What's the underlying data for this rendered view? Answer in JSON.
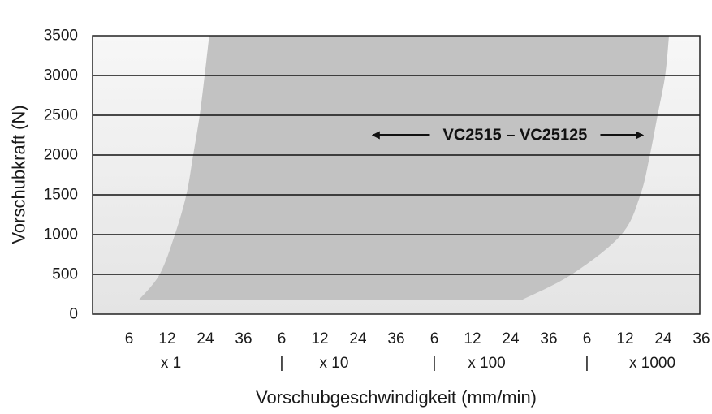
{
  "chart_data": {
    "type": "area",
    "title": "",
    "xlabel": "Vorschubgeschwindigkeit (mm/min)",
    "ylabel": "Vorschubkraft (N)",
    "ylim": [
      0,
      3500
    ],
    "yticks": [
      0,
      500,
      1000,
      1500,
      2000,
      2500,
      3000,
      3500
    ],
    "grid": "horizontal",
    "x_tick_labels": [
      "6",
      "12",
      "24",
      "36",
      "6",
      "12",
      "24",
      "36",
      "6",
      "12",
      "24",
      "36",
      "6",
      "12",
      "24",
      "36"
    ],
    "x_multipliers": [
      "x 1",
      "x 10",
      "x 100",
      "x 1000"
    ],
    "x_separators": [
      "|",
      "|",
      "|"
    ],
    "region": {
      "name": "VC2515 – VC25125",
      "upper_left_edge": [
        {
          "x": 0.26,
          "y": 180
        },
        {
          "x": 0.8,
          "y": 500
        },
        {
          "x": 1.2,
          "y": 1000
        },
        {
          "x": 1.5,
          "y": 1500
        },
        {
          "x": 1.68,
          "y": 2000
        },
        {
          "x": 1.85,
          "y": 2500
        },
        {
          "x": 1.98,
          "y": 3000
        },
        {
          "x": 2.1,
          "y": 3500
        }
      ],
      "lower_right_edge": [
        {
          "x": 10.3,
          "y": 180
        },
        {
          "x": 11.6,
          "y": 500
        },
        {
          "x": 12.9,
          "y": 1000
        },
        {
          "x": 13.4,
          "y": 1500
        },
        {
          "x": 13.65,
          "y": 2000
        },
        {
          "x": 13.85,
          "y": 2500
        },
        {
          "x": 14.05,
          "y": 3000
        },
        {
          "x": 14.15,
          "y": 3500
        }
      ]
    },
    "annotation": {
      "text": "VC2515 – VC25125",
      "y": 2250,
      "arrow_from_x": 6.4,
      "arrow_to_x": 13.45
    }
  }
}
